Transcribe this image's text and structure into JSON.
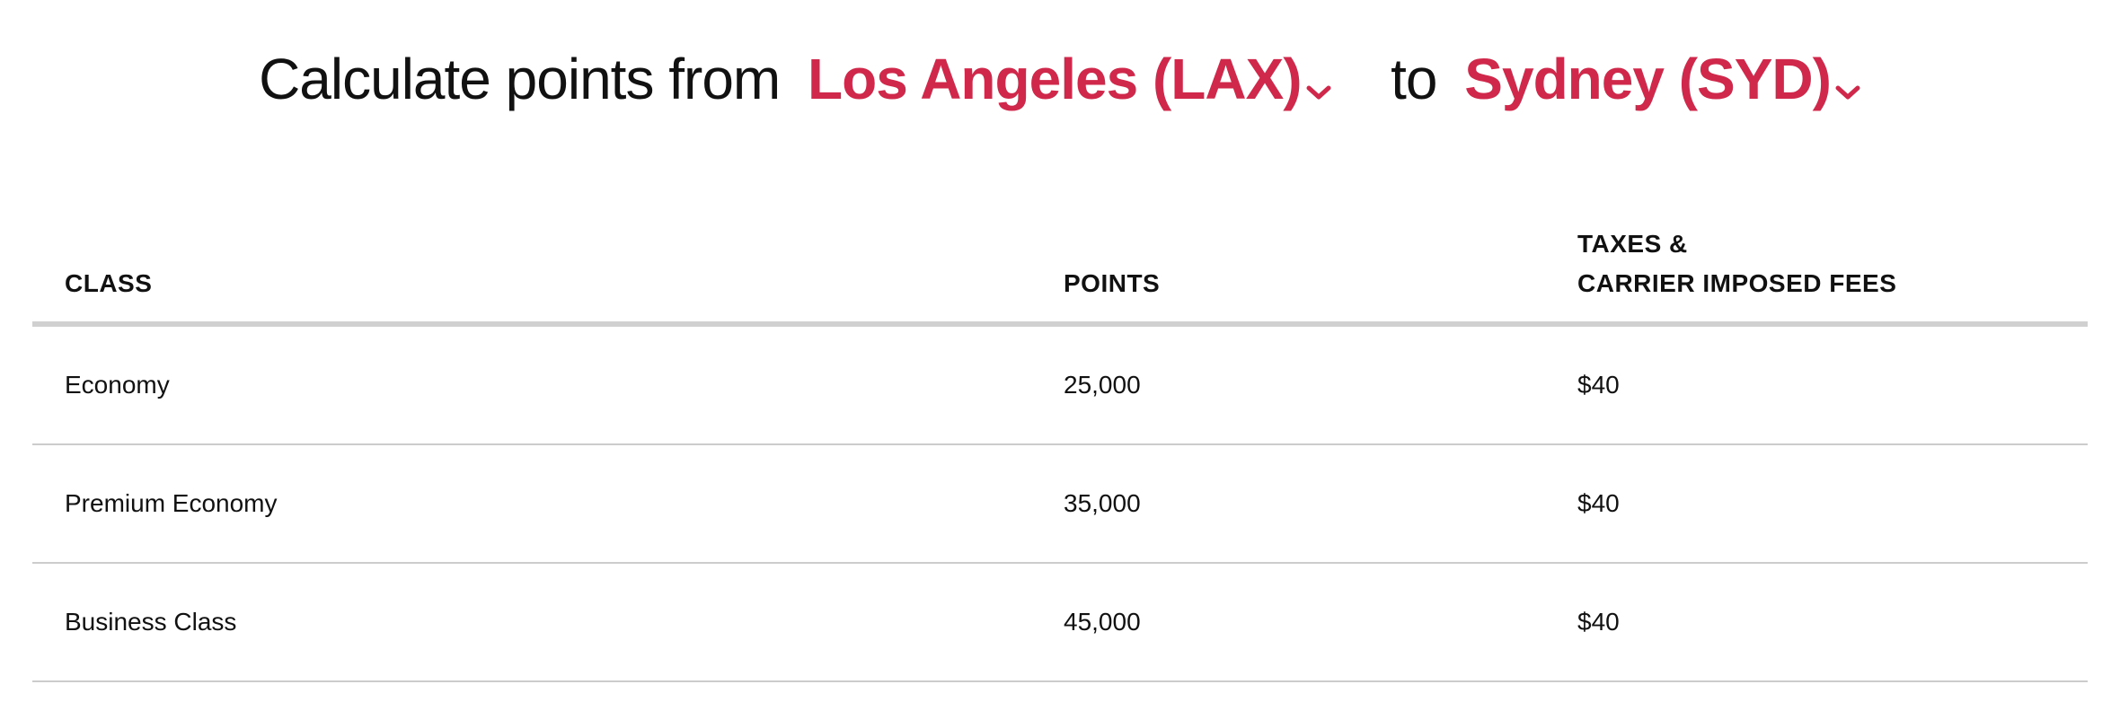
{
  "heading": {
    "prefix": "Calculate points from",
    "origin": "Los Angeles (LAX)",
    "connector": "to",
    "destination": "Sydney (SYD)",
    "accent_color": "#d0284a"
  },
  "table": {
    "headers": {
      "class": "CLASS",
      "points": "POINTS",
      "fees_line1": "TAXES &",
      "fees_line2": "CARRIER IMPOSED FEES"
    },
    "rows": [
      {
        "class": "Economy",
        "points": "25,000",
        "fees": "$40"
      },
      {
        "class": "Premium Economy",
        "points": "35,000",
        "fees": "$40"
      },
      {
        "class": "Business Class",
        "points": "45,000",
        "fees": "$40"
      }
    ]
  },
  "icons": {
    "origin_dropdown": "chevron-down-icon",
    "destination_dropdown": "chevron-down-icon"
  }
}
